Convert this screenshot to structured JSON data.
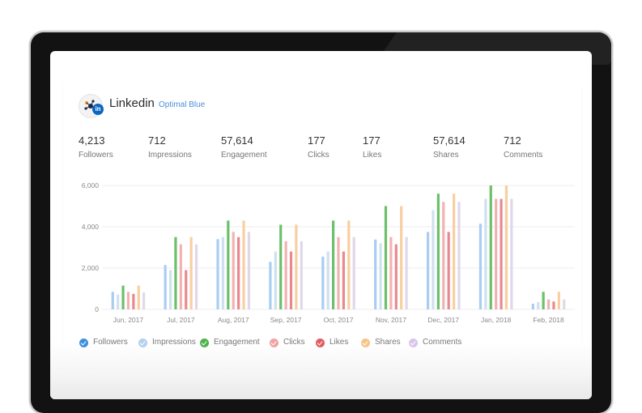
{
  "profile": {
    "network": "Linkedin",
    "account": "Optimal Blue",
    "badge": "in"
  },
  "stats": [
    {
      "value": "4,213",
      "label": "Followers"
    },
    {
      "value": "712",
      "label": "Impressions"
    },
    {
      "value": "57,614",
      "label": "Engagement"
    },
    {
      "value": "177",
      "label": "Clicks"
    },
    {
      "value": "177",
      "label": "Likes"
    },
    {
      "value": "57,614",
      "label": "Shares"
    },
    {
      "value": "712",
      "label": "Comments"
    }
  ],
  "colors": {
    "followers": "#a9cdf2",
    "impressions": "#cfe0f0",
    "engagement": "#6cc06b",
    "clicks": "#f3b2b2",
    "likes": "#e9898f",
    "shares": "#f8cfa0",
    "comments": "#e0d8ea",
    "legend_followers": "#3d8fde",
    "legend_impressions": "#b3d0ee",
    "legend_engagement": "#4fb24e",
    "legend_clicks": "#f0a3a3",
    "legend_likes": "#e25c63",
    "legend_shares": "#f7c486",
    "legend_comments": "#d8c6ea",
    "grid": "#ececec",
    "axis_text": "#8a8a8a"
  },
  "chart_data": {
    "type": "bar",
    "categories": [
      "Jun, 2017",
      "Jul, 2017",
      "Aug, 2017",
      "Sep, 2017",
      "Oct, 2017",
      "Nov, 2017",
      "Dec, 2017",
      "Jan, 2018",
      "Feb, 2018"
    ],
    "yticks": [
      "0",
      "2,000",
      "4,000",
      "6,000"
    ],
    "ylim": [
      0,
      6000
    ],
    "grid": true,
    "legend_position": "bottom",
    "series": [
      {
        "name": "Followers",
        "key": "followers",
        "values": [
          850,
          2150,
          3400,
          2300,
          2550,
          3380,
          3750,
          4150,
          270
        ]
      },
      {
        "name": "Impressions",
        "key": "impressions",
        "values": [
          720,
          1900,
          3500,
          2800,
          2800,
          3200,
          4800,
          5350,
          360
        ]
      },
      {
        "name": "Engagement",
        "key": "engagement",
        "values": [
          1150,
          3500,
          4300,
          4100,
          4300,
          5000,
          5600,
          6000,
          850
        ]
      },
      {
        "name": "Clicks",
        "key": "clicks",
        "values": [
          850,
          3150,
          3750,
          3300,
          3500,
          3500,
          5200,
          5350,
          480
        ]
      },
      {
        "name": "Likes",
        "key": "likes",
        "values": [
          750,
          1900,
          3500,
          2800,
          2800,
          3150,
          3750,
          5350,
          380
        ]
      },
      {
        "name": "Shares",
        "key": "shares",
        "values": [
          1150,
          3500,
          4300,
          4100,
          4300,
          5000,
          5600,
          6000,
          850
        ]
      },
      {
        "name": "Comments",
        "key": "comments",
        "values": [
          820,
          3150,
          3750,
          3300,
          3500,
          3500,
          5200,
          5350,
          480
        ]
      }
    ]
  },
  "legend": [
    {
      "label": "Followers",
      "color_key": "legend_followers"
    },
    {
      "label": "Impressions",
      "color_key": "legend_impressions"
    },
    {
      "label": "Engagement",
      "color_key": "legend_engagement"
    },
    {
      "label": "Clicks",
      "color_key": "legend_clicks"
    },
    {
      "label": "Likes",
      "color_key": "legend_likes"
    },
    {
      "label": "Shares",
      "color_key": "legend_shares"
    },
    {
      "label": "Comments",
      "color_key": "legend_comments"
    }
  ]
}
